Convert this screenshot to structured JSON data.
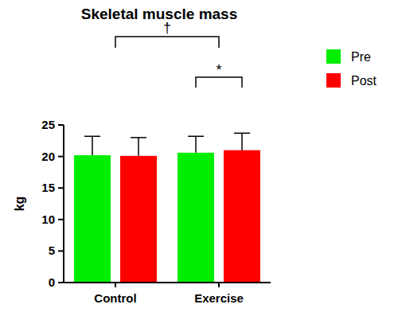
{
  "chart_data": {
    "type": "bar",
    "title": "Skeletal muscle mass",
    "y_label": "kg",
    "categories": [
      "Control",
      "Exercise"
    ],
    "series": [
      {
        "name": "Pre",
        "color": "#00ee00",
        "values": [
          20.2,
          20.6
        ],
        "errors": [
          3.0,
          2.6
        ]
      },
      {
        "name": "Post",
        "color": "#ff0000",
        "values": [
          20.1,
          21.0
        ],
        "errors": [
          2.9,
          2.7
        ]
      }
    ],
    "ylim": [
      0,
      25
    ],
    "yticks": [
      0,
      5,
      10,
      15,
      20,
      25
    ],
    "grid": false,
    "legend": "right",
    "annotations": [
      {
        "text": "†",
        "categories": [
          0,
          1
        ]
      },
      {
        "text": "*",
        "category": 1,
        "series": [
          0,
          1
        ]
      }
    ]
  }
}
